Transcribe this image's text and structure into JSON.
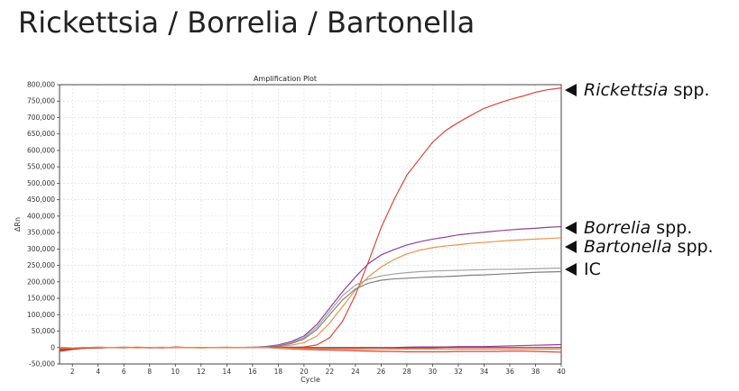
{
  "page": {
    "title": "Rickettsia / Borrelia / Bartonella"
  },
  "chart_data": {
    "type": "line",
    "title": "Amplification Plot",
    "xlabel": "Cycle",
    "ylabel": "ΔRn",
    "xlim": [
      1,
      40
    ],
    "ylim": [
      -50000,
      800000
    ],
    "grid": true,
    "x_ticks": [
      "2",
      "4",
      "6",
      "8",
      "10",
      "12",
      "14",
      "16",
      "18",
      "20",
      "22",
      "24",
      "26",
      "28",
      "30",
      "32",
      "34",
      "36",
      "38",
      "40"
    ],
    "y_ticks": [
      "800,000",
      "750,000",
      "700,000",
      "650,000",
      "600,000",
      "550,000",
      "500,000",
      "450,000",
      "400,000",
      "350,000",
      "300,000",
      "250,000",
      "200,000",
      "150,000",
      "100,000",
      "50,000",
      "0",
      "-50,000"
    ],
    "x": [
      1,
      2,
      3,
      4,
      5,
      6,
      7,
      8,
      9,
      10,
      11,
      12,
      13,
      14,
      15,
      16,
      17,
      18,
      19,
      20,
      21,
      22,
      23,
      24,
      25,
      26,
      27,
      28,
      29,
      30,
      31,
      32,
      33,
      34,
      35,
      36,
      37,
      38,
      39,
      40
    ],
    "series": [
      {
        "color": "#d9483b",
        "values": [
          -12000,
          -6000,
          -2000,
          0,
          0,
          0,
          0,
          0,
          0,
          0,
          0,
          0,
          0,
          0,
          0,
          0,
          0,
          0,
          0,
          2000,
          8000,
          30000,
          80000,
          160000,
          260000,
          365000,
          450000,
          525000,
          575000,
          625000,
          660000,
          685000,
          707000,
          728000,
          742000,
          755000,
          765000,
          777000,
          785000,
          790000
        ]
      },
      {
        "color": "#8e3f9a",
        "values": [
          -8000,
          -3000,
          0,
          0,
          0,
          0,
          0,
          0,
          0,
          0,
          0,
          0,
          0,
          0,
          0,
          1000,
          3000,
          8000,
          18000,
          35000,
          70000,
          120000,
          170000,
          215000,
          255000,
          282000,
          298000,
          312000,
          322000,
          330000,
          336000,
          343000,
          347000,
          351000,
          355000,
          358000,
          361000,
          363000,
          366000,
          368000
        ]
      },
      {
        "color": "#e8924e",
        "values": [
          -6000,
          -2000,
          0,
          0,
          0,
          0,
          0,
          0,
          0,
          0,
          0,
          0,
          0,
          0,
          0,
          0,
          1000,
          3000,
          7000,
          15000,
          35000,
          75000,
          125000,
          175000,
          215000,
          245000,
          268000,
          285000,
          296000,
          304000,
          309000,
          313000,
          317000,
          320000,
          323000,
          326000,
          328000,
          330000,
          332000,
          334000
        ]
      },
      {
        "color": "#a3a3a3",
        "values": [
          -5000,
          -2000,
          0,
          0,
          0,
          0,
          0,
          0,
          0,
          0,
          0,
          0,
          0,
          0,
          0,
          1000,
          2000,
          6000,
          14000,
          30000,
          62000,
          110000,
          158000,
          190000,
          208000,
          218000,
          224000,
          228000,
          231000,
          233000,
          234000,
          235000,
          236000,
          237000,
          238000,
          238000,
          239000,
          240000,
          241000,
          242000
        ]
      },
      {
        "color": "#808080",
        "values": [
          -5000,
          -2000,
          0,
          0,
          0,
          0,
          0,
          0,
          0,
          0,
          0,
          0,
          0,
          0,
          0,
          500,
          2000,
          5000,
          12000,
          26000,
          55000,
          100000,
          145000,
          178000,
          196000,
          205000,
          209000,
          211000,
          213000,
          215000,
          216000,
          218000,
          220000,
          221000,
          223000,
          225000,
          227000,
          229000,
          230000,
          231000
        ]
      },
      {
        "color": "#8e3f9a",
        "values": [
          0,
          -1000,
          -2000,
          -1000,
          0,
          1000,
          0,
          -1000,
          0,
          0,
          0,
          0,
          0,
          0,
          0,
          0,
          1000,
          1000,
          1000,
          0,
          0,
          0,
          0,
          0,
          0,
          0,
          0,
          1000,
          2000,
          2000,
          2000,
          3000,
          3000,
          3000,
          4000,
          5000,
          6000,
          7000,
          8000,
          9000
        ]
      },
      {
        "color": "#a93226",
        "values": [
          -8000,
          -4000,
          -2000,
          -1000,
          0,
          0,
          0,
          0,
          0,
          0,
          0,
          0,
          0,
          0,
          0,
          0,
          0,
          0,
          0,
          -1000,
          -1000,
          -1000,
          -1000,
          -1000,
          -1000,
          -1000,
          -1000,
          -1000,
          -1000,
          -1000,
          0,
          0,
          0,
          0,
          0,
          0,
          0,
          0,
          0,
          0
        ]
      },
      {
        "color": "#d9483b",
        "values": [
          -3000,
          -2000,
          0,
          1000,
          0,
          -1000,
          1000,
          0,
          -1000,
          2000,
          0,
          -1000,
          0,
          1000,
          0,
          0,
          0,
          -2000,
          -4000,
          -6000,
          -7000,
          -8000,
          -9000,
          -10000,
          -11000,
          -12000,
          -12000,
          -13000,
          -13000,
          -13000,
          -13000,
          -12000,
          -12000,
          -12000,
          -12000,
          -11000,
          -11000,
          -12000,
          -13000,
          -14000
        ]
      },
      {
        "color": "#e8924e",
        "values": [
          0,
          -1000,
          0,
          1000,
          0,
          0,
          -1000,
          0,
          1000,
          0,
          0,
          0,
          0,
          0,
          0,
          0,
          0,
          -1000,
          -2000,
          -3000,
          -4000,
          -5000,
          -5000,
          -5000,
          -6000,
          -6000,
          -5000,
          -5000,
          -5000,
          -5000,
          -5000,
          -5000,
          -5000,
          -5000,
          -5000,
          -5000,
          -5000,
          -5000,
          -5000,
          -5000
        ]
      }
    ],
    "annotations": [
      {
        "italic": "Rickettsia",
        "rest": " spp."
      },
      {
        "italic": "Borrelia",
        "rest": " spp."
      },
      {
        "italic": "Bartonella",
        "rest": " spp."
      },
      {
        "italic": "",
        "rest": "IC"
      }
    ]
  }
}
